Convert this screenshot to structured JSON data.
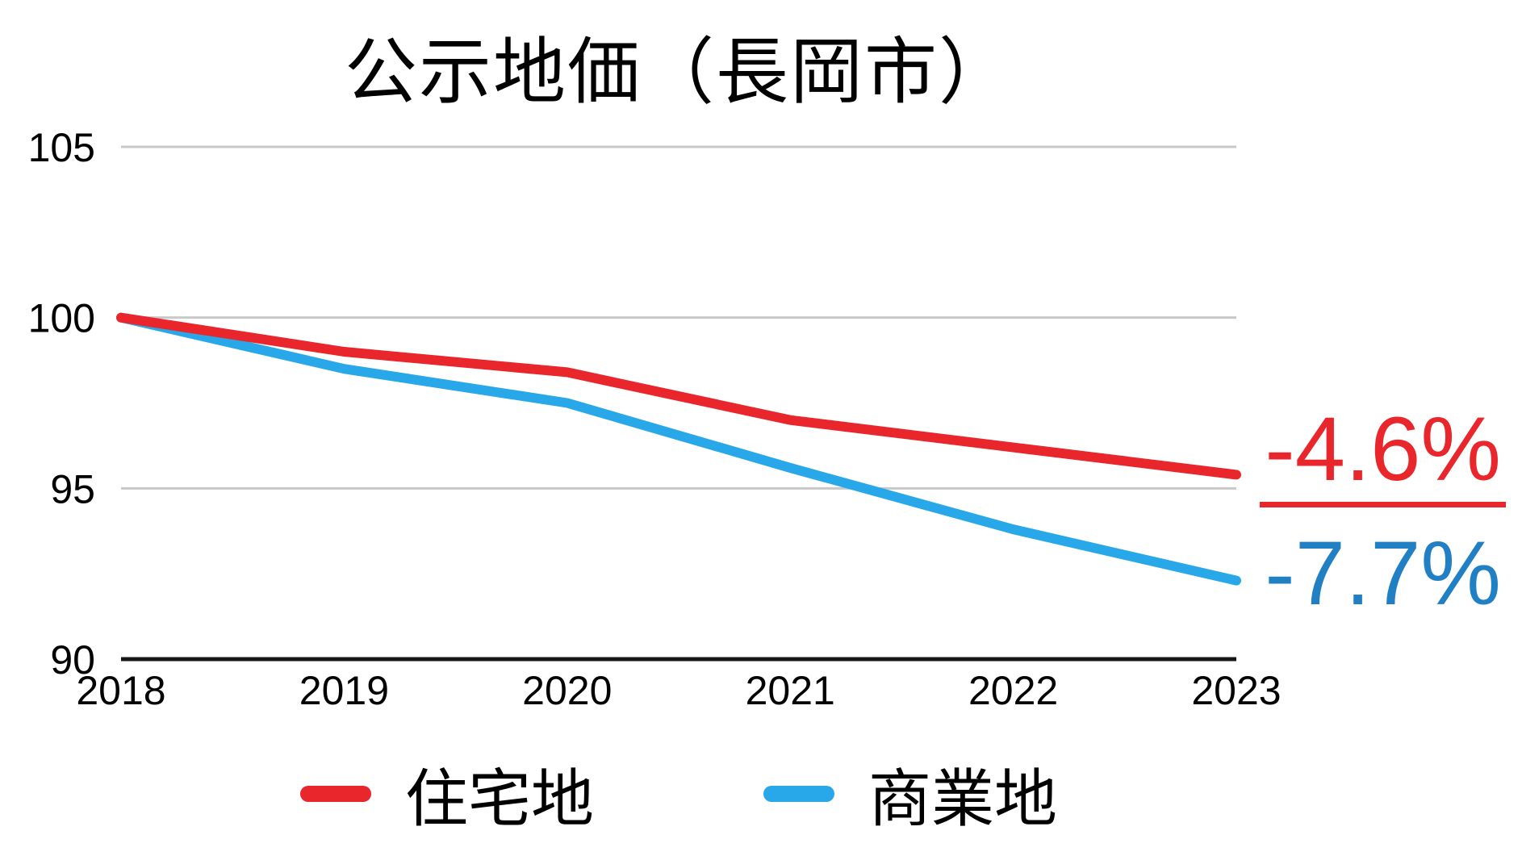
{
  "chart_data": {
    "type": "line",
    "title": "公示地価（長岡市）",
    "categories": [
      "2018",
      "2019",
      "2020",
      "2021",
      "2022",
      "2023"
    ],
    "series": [
      {
        "name": "住宅地",
        "color": "#e9262b",
        "values": [
          100,
          99.0,
          98.4,
          97.0,
          96.2,
          95.4
        ],
        "end_label": "-4.6%",
        "end_label_color": "#e9262b",
        "end_label_underline": true
      },
      {
        "name": "商業地",
        "color": "#29a8e9",
        "values": [
          100,
          98.5,
          97.5,
          95.6,
          93.8,
          92.3
        ],
        "end_label": "-7.7%",
        "end_label_color": "#217fc4",
        "end_label_underline": false
      }
    ],
    "ylim": [
      90,
      105
    ],
    "yticks": [
      105,
      100,
      95,
      90
    ],
    "grid": true,
    "legend_position": "bottom",
    "colors": {
      "gridline": "#c8c8c8",
      "axis_line": "#161616",
      "text": "#000000",
      "background": "#ffffff"
    }
  }
}
